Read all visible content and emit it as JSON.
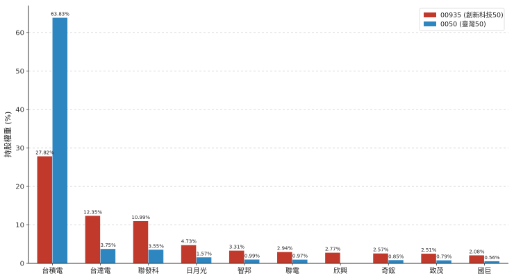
{
  "chart_data": {
    "type": "bar",
    "title": "",
    "xlabel": "",
    "ylabel": "持股權重 (%)",
    "ylim": [
      0,
      67
    ],
    "yticks": [
      0,
      10,
      20,
      30,
      40,
      50,
      60
    ],
    "grid": "horizontal-dashed",
    "legend_position": "top-right",
    "categories": [
      "台積電",
      "台達電",
      "聯發科",
      "日月光",
      "智邦",
      "聯電",
      "欣興",
      "奇鋐",
      "致茂",
      "國巨"
    ],
    "series": [
      {
        "name": "00935 (創新科技50)",
        "color": "#c0392b",
        "values": [
          27.82,
          12.35,
          10.99,
          4.73,
          3.31,
          2.94,
          2.77,
          2.57,
          2.51,
          2.08
        ],
        "labels": [
          "27.82%",
          "12.35%",
          "10.99%",
          "4.73%",
          "3.31%",
          "2.94%",
          "2.77%",
          "2.57%",
          "2.51%",
          "2.08%"
        ]
      },
      {
        "name": "0050 (臺灣50)",
        "color": "#2e86c1",
        "values": [
          63.83,
          3.75,
          3.55,
          1.57,
          0.99,
          0.97,
          null,
          0.85,
          0.79,
          0.56
        ],
        "labels": [
          "63.83%",
          "3.75%",
          "3.55%",
          "1.57%",
          "0.99%",
          "0.97%",
          null,
          "0.85%",
          "0.79%",
          "0.56%"
        ]
      }
    ]
  }
}
